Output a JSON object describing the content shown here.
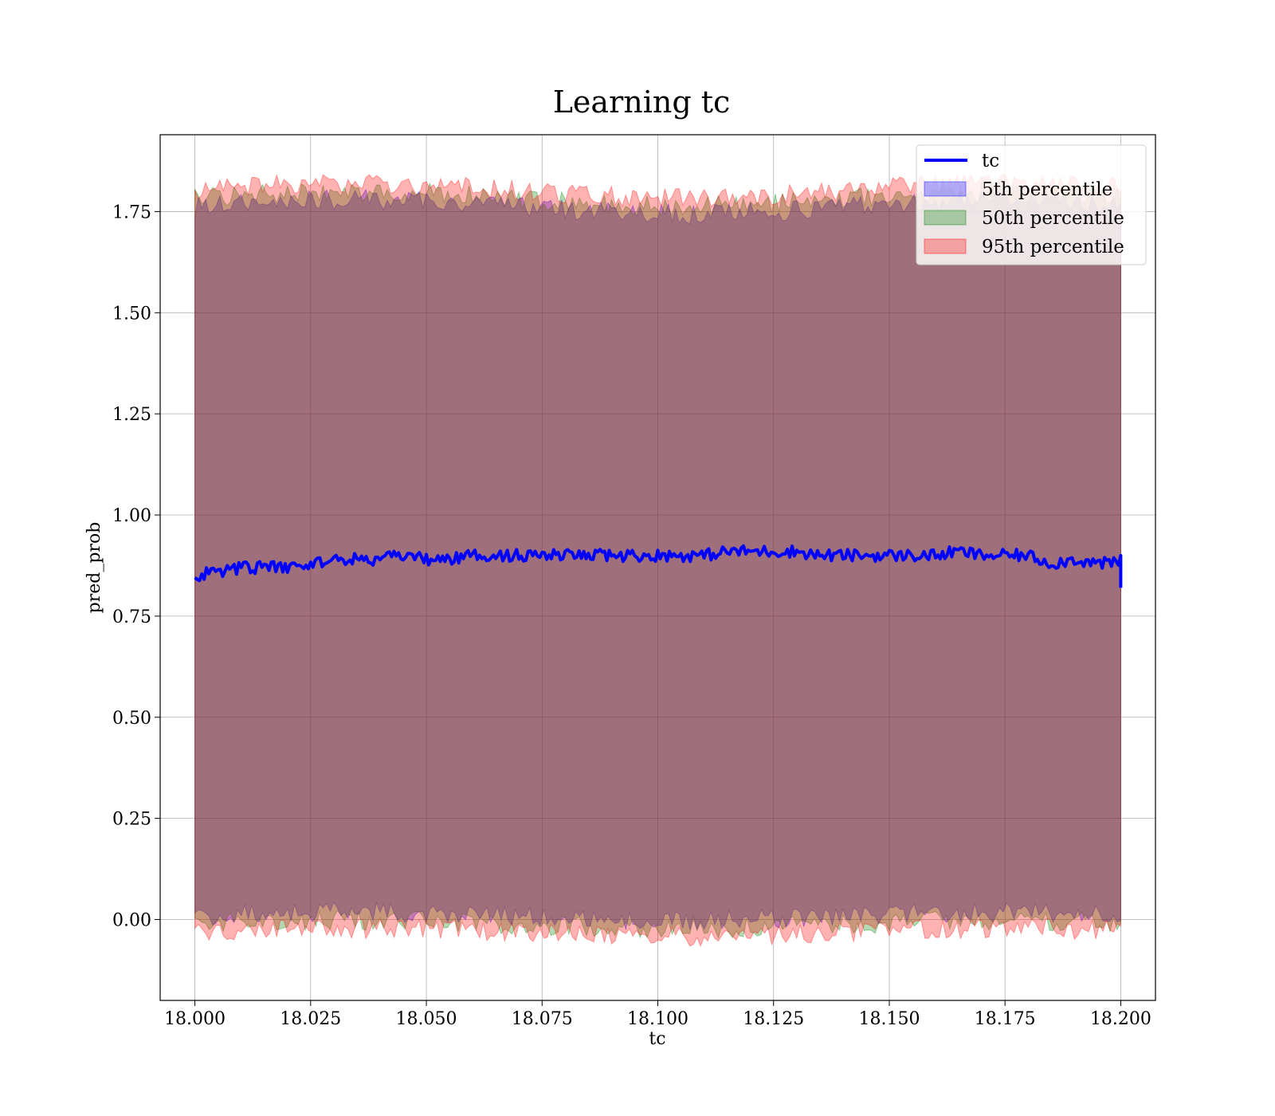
{
  "chart_data": {
    "type": "area",
    "title": "Learning tc",
    "xlabel": "tc",
    "ylabel": "pred_prob",
    "xlim": [
      17.9925,
      18.2075
    ],
    "ylim": [
      -0.2,
      1.94
    ],
    "x_ticks": [
      "18.000",
      "18.025",
      "18.050",
      "18.075",
      "18.100",
      "18.125",
      "18.150",
      "18.175",
      "18.200"
    ],
    "y_ticks": [
      "0.00",
      "0.25",
      "0.50",
      "0.75",
      "1.00",
      "1.25",
      "1.50",
      "1.75"
    ],
    "grid": true,
    "legend_position": "top-right",
    "x_range": [
      18.0,
      18.2
    ],
    "tc_line": {
      "name": "tc",
      "color": "#0000ff",
      "x": [
        18.0,
        18.005,
        18.01,
        18.015,
        18.02,
        18.025,
        18.03,
        18.035,
        18.04,
        18.045,
        18.05,
        18.055,
        18.06,
        18.065,
        18.07,
        18.075,
        18.08,
        18.085,
        18.09,
        18.095,
        18.1,
        18.105,
        18.11,
        18.115,
        18.12,
        18.125,
        18.13,
        18.135,
        18.14,
        18.145,
        18.15,
        18.155,
        18.16,
        18.165,
        18.17,
        18.175,
        18.18,
        18.185,
        18.19,
        18.195,
        18.2
      ],
      "y": [
        0.85,
        0.86,
        0.87,
        0.87,
        0.87,
        0.88,
        0.89,
        0.89,
        0.89,
        0.9,
        0.89,
        0.89,
        0.9,
        0.9,
        0.9,
        0.9,
        0.9,
        0.9,
        0.9,
        0.9,
        0.9,
        0.9,
        0.9,
        0.91,
        0.91,
        0.91,
        0.91,
        0.9,
        0.9,
        0.9,
        0.9,
        0.9,
        0.9,
        0.91,
        0.9,
        0.9,
        0.9,
        0.88,
        0.89,
        0.88,
        0.88
      ]
    },
    "series": [
      {
        "name": "5th percentile",
        "color": "#0000ff",
        "lower": 0.0,
        "upper": 1.75
      },
      {
        "name": "50th percentile",
        "color": "#008000",
        "lower": -0.02,
        "upper": 1.77
      },
      {
        "name": "95th percentile",
        "color": "#ff0000",
        "lower": -0.04,
        "upper": 1.79
      }
    ]
  }
}
